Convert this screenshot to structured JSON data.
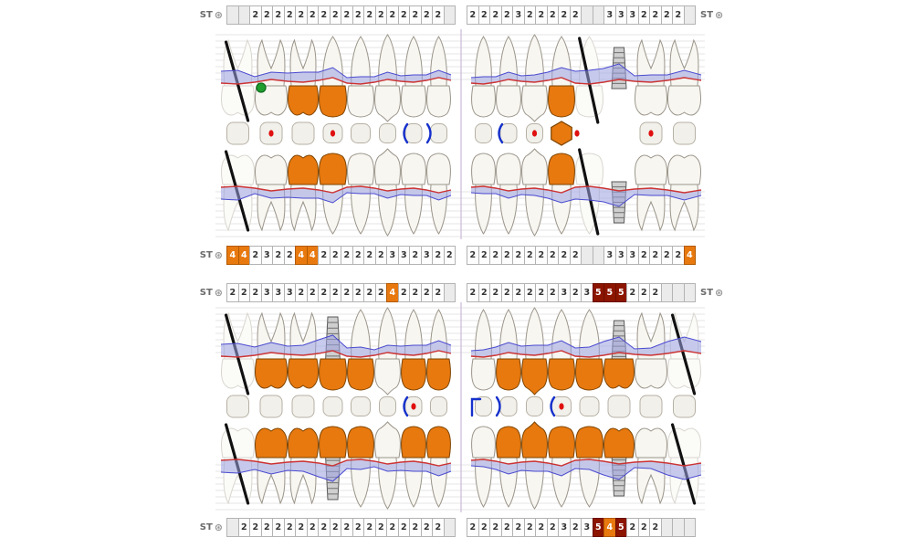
{
  "labels": {
    "st": "ST",
    "st_icon": "⊛"
  },
  "colors": {
    "orange": "#e8790f",
    "dark_red": "#8c1500",
    "band": "#9ba0e0",
    "gingiva_line": "#cc3333",
    "attachment_line": "#4a4ad0",
    "implant_gray": "#cfcfcf",
    "missing_stroke": "#111111",
    "green_marker": "#1f9e2e",
    "blue_bracket": "#1530cc",
    "red_dot": "#e01010"
  },
  "st_rows": [
    {
      "pos": "upper-top",
      "left_label": true,
      "right_label": true,
      "left": [
        "",
        "",
        "2",
        "2",
        "2",
        "2",
        "2",
        "2",
        "2",
        "2",
        "2",
        "2",
        "2",
        "2",
        "2",
        "2",
        "2",
        "2",
        "2",
        ""
      ],
      "right": [
        "2",
        "2",
        "2",
        "2",
        "3",
        "2",
        "2",
        "2",
        "2",
        "2",
        "",
        "",
        "3",
        "3",
        "3",
        "2",
        "2",
        "2",
        "2",
        ""
      ]
    },
    {
      "pos": "upper-bottom",
      "left_label": true,
      "right_label": false,
      "left": [
        "4o",
        "4o",
        "2",
        "3",
        "2",
        "2",
        "4o",
        "4o",
        "2",
        "2",
        "2",
        "2",
        "2",
        "2",
        "3",
        "3",
        "2",
        "3",
        "2",
        "2"
      ],
      "right": [
        "2",
        "2",
        "2",
        "2",
        "2",
        "2",
        "2",
        "2",
        "2",
        "2",
        "",
        "",
        "3",
        "3",
        "3",
        "2",
        "2",
        "2",
        "2",
        "4o"
      ]
    },
    {
      "pos": "lower-top",
      "left_label": true,
      "right_label": true,
      "left": [
        "2",
        "2",
        "2",
        "3",
        "3",
        "3",
        "2",
        "2",
        "2",
        "2",
        "2",
        "2",
        "2",
        "2",
        "4o",
        "2",
        "2",
        "2",
        "2",
        ""
      ],
      "right": [
        "2",
        "2",
        "2",
        "2",
        "2",
        "2",
        "2",
        "2",
        "3",
        "2",
        "3",
        "5r",
        "5r",
        "5r",
        "2",
        "2",
        "2",
        "",
        "",
        ""
      ]
    },
    {
      "pos": "lower-bottom",
      "left_label": true,
      "right_label": false,
      "left": [
        "",
        "2",
        "2",
        "2",
        "2",
        "2",
        "2",
        "2",
        "2",
        "2",
        "2",
        "2",
        "2",
        "2",
        "2",
        "2",
        "2",
        "2",
        "2",
        ""
      ],
      "right": [
        "2",
        "2",
        "2",
        "2",
        "2",
        "2",
        "2",
        "2",
        "3",
        "2",
        "3",
        "5r",
        "4o",
        "5r",
        "2",
        "2",
        "2",
        "",
        "",
        ""
      ]
    }
  ],
  "upper_teeth": [
    {
      "id": "18",
      "type": "molar",
      "status": "missing"
    },
    {
      "id": "17",
      "type": "molar",
      "status": "normal",
      "marker": "green-circle"
    },
    {
      "id": "16",
      "type": "molar",
      "status": "orange"
    },
    {
      "id": "15",
      "type": "premolar",
      "status": "orange"
    },
    {
      "id": "14",
      "type": "premolar",
      "status": "normal"
    },
    {
      "id": "13",
      "type": "canine",
      "status": "normal"
    },
    {
      "id": "12",
      "type": "incisor",
      "status": "normal"
    },
    {
      "id": "11",
      "type": "incisor",
      "status": "normal"
    },
    {
      "id": "21",
      "type": "incisor",
      "status": "normal"
    },
    {
      "id": "22",
      "type": "incisor",
      "status": "normal"
    },
    {
      "id": "23",
      "type": "canine",
      "status": "normal"
    },
    {
      "id": "24",
      "type": "premolar",
      "status": "orange"
    },
    {
      "id": "25",
      "type": "premolar",
      "status": "missing"
    },
    {
      "id": "26",
      "type": "molar",
      "status": "implant"
    },
    {
      "id": "27",
      "type": "molar",
      "status": "normal"
    },
    {
      "id": "28",
      "type": "molar",
      "status": "normal"
    }
  ],
  "upper_occlusal": [
    {
      "shape": "square"
    },
    {
      "shape": "square",
      "dot": true
    },
    {
      "shape": "square"
    },
    {
      "shape": "square",
      "dot": true
    },
    {
      "shape": "square"
    },
    {
      "shape": "square"
    },
    {
      "shape": "square",
      "bracket": "("
    },
    {
      "shape": "square",
      "bracket": ")"
    },
    {
      "shape": "square"
    },
    {
      "shape": "square",
      "bracket": "("
    },
    {
      "shape": "square",
      "dot": true
    },
    {
      "shape": "hex",
      "dot": true
    },
    {
      "shape": "none"
    },
    {
      "shape": "none"
    },
    {
      "shape": "square",
      "dot": true
    },
    {
      "shape": "square"
    }
  ],
  "lower_teeth": [
    {
      "id": "48",
      "type": "molar",
      "status": "missing"
    },
    {
      "id": "47",
      "type": "molar",
      "status": "orange"
    },
    {
      "id": "46",
      "type": "molar",
      "status": "orange"
    },
    {
      "id": "45",
      "type": "premolar",
      "status": "implant-orange"
    },
    {
      "id": "44",
      "type": "premolar",
      "status": "orange"
    },
    {
      "id": "43",
      "type": "canine",
      "status": "normal"
    },
    {
      "id": "42",
      "type": "incisor",
      "status": "orange"
    },
    {
      "id": "41",
      "type": "incisor",
      "status": "orange"
    },
    {
      "id": "31",
      "type": "incisor",
      "status": "normal"
    },
    {
      "id": "32",
      "type": "incisor",
      "status": "orange"
    },
    {
      "id": "33",
      "type": "canine",
      "status": "orange"
    },
    {
      "id": "34",
      "type": "premolar",
      "status": "orange"
    },
    {
      "id": "35",
      "type": "premolar",
      "status": "orange"
    },
    {
      "id": "36",
      "type": "molar",
      "status": "implant-orange"
    },
    {
      "id": "37",
      "type": "molar",
      "status": "normal"
    },
    {
      "id": "38",
      "type": "molar",
      "status": "missing"
    }
  ],
  "lower_occlusal": [
    {
      "shape": "square"
    },
    {
      "shape": "square"
    },
    {
      "shape": "square"
    },
    {
      "shape": "square"
    },
    {
      "shape": "square"
    },
    {
      "shape": "square"
    },
    {
      "shape": "square",
      "bracket": "(",
      "dot": true
    },
    {
      "shape": "square"
    },
    {
      "shape": "square",
      "bracket": "corner"
    },
    {
      "shape": "square",
      "bracket": ")"
    },
    {
      "shape": "square"
    },
    {
      "shape": "square",
      "dot": true,
      "bracket": "("
    },
    {
      "shape": "square"
    },
    {
      "shape": "square"
    },
    {
      "shape": "square"
    },
    {
      "shape": "square"
    }
  ]
}
